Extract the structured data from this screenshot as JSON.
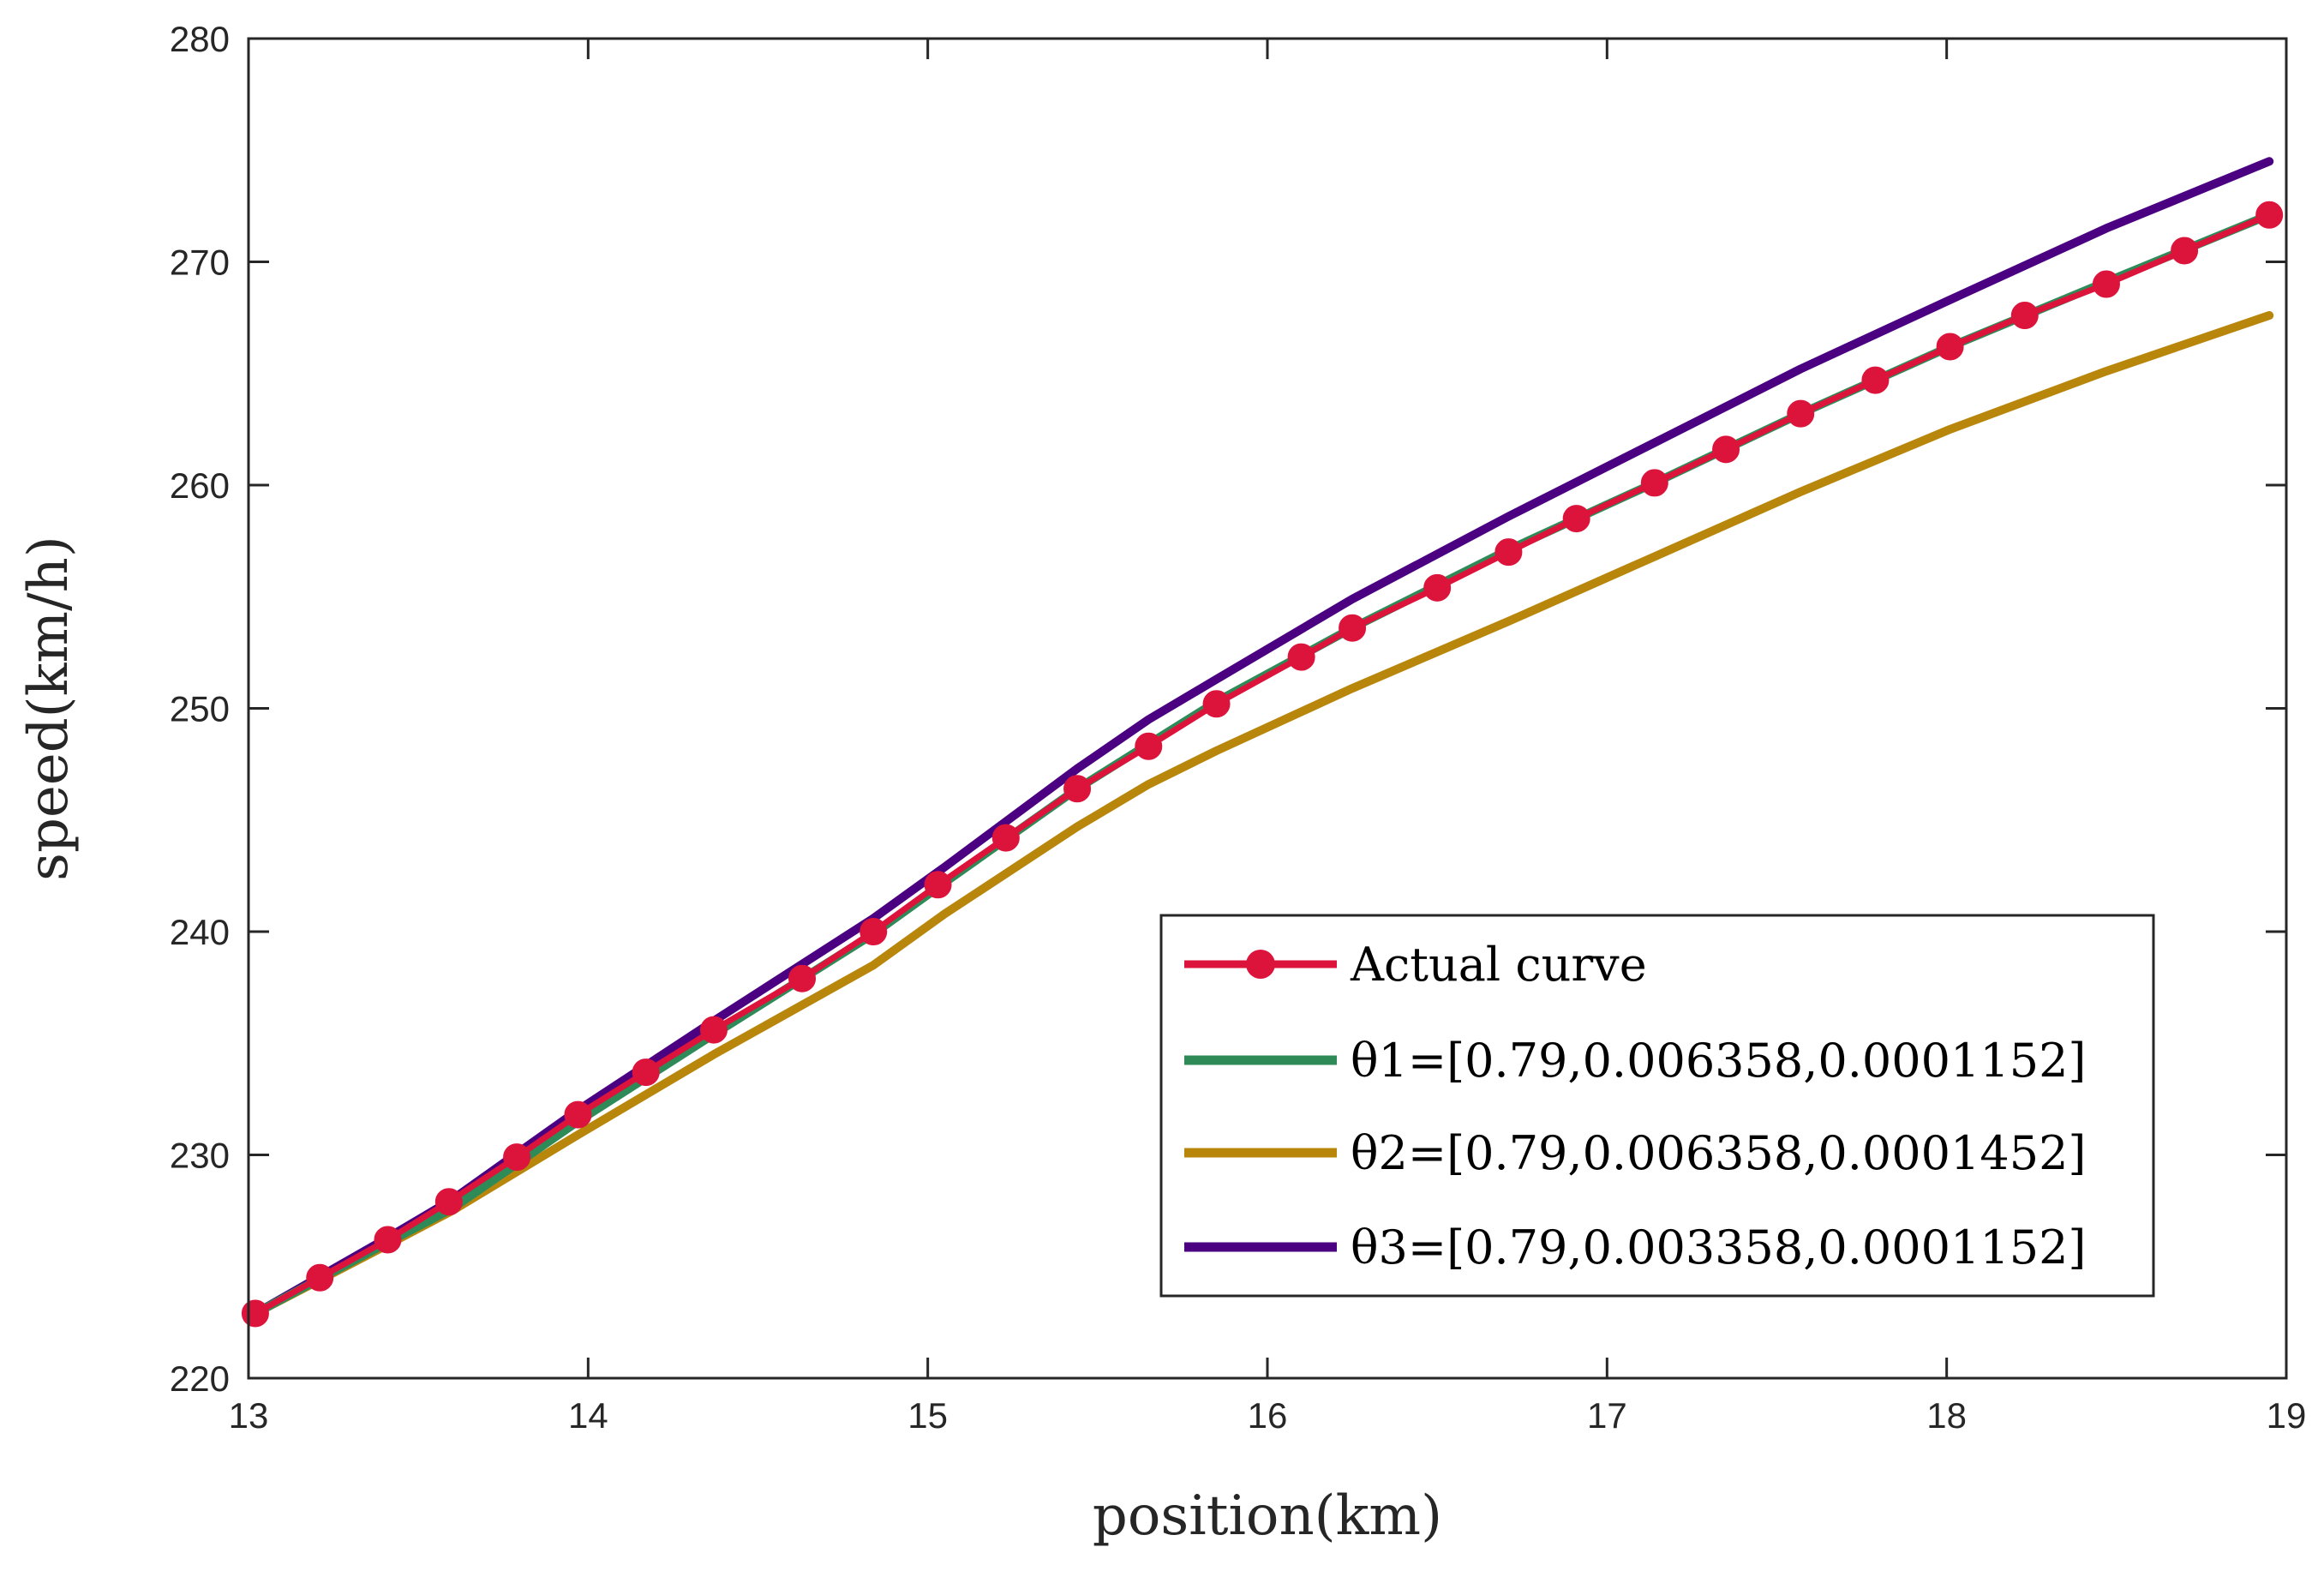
{
  "chart_data": {
    "type": "line",
    "title": "",
    "xlabel": "position(km)",
    "ylabel": "speed(km/h)",
    "xlim": [
      13,
      19
    ],
    "ylim": [
      220,
      280
    ],
    "xticks": [
      13,
      14,
      15,
      16,
      17,
      18,
      19
    ],
    "yticks": [
      220,
      230,
      240,
      250,
      260,
      270,
      280
    ],
    "grid": false,
    "legend_position": "lower-right",
    "series": [
      {
        "name": "Actual curve",
        "color": "#DC143C",
        "marker": "circle",
        "x": [
          13.02,
          13.21,
          13.41,
          13.59,
          13.79,
          13.97,
          14.17,
          14.37,
          14.63,
          14.84,
          15.03,
          15.23,
          15.44,
          15.65,
          15.85,
          16.1,
          16.25,
          16.5,
          16.71,
          16.91,
          17.14,
          17.35,
          17.57,
          17.79,
          18.01,
          18.23,
          18.47,
          18.7,
          18.95
        ],
        "y": [
          222.9,
          224.5,
          226.2,
          227.9,
          229.9,
          231.8,
          233.7,
          235.6,
          237.9,
          240.0,
          242.1,
          244.2,
          246.4,
          248.3,
          250.2,
          252.3,
          253.6,
          255.4,
          257.0,
          258.5,
          260.1,
          261.6,
          263.2,
          264.7,
          266.2,
          267.6,
          269.0,
          270.5,
          272.1
        ]
      },
      {
        "name": "θ1=[0.79,0.006358,0.0001152]",
        "color": "#2E8B57",
        "x": [
          13.02,
          13.4,
          13.6,
          13.97,
          14.37,
          14.84,
          15.05,
          15.44,
          15.65,
          15.85,
          16.25,
          16.71,
          17.14,
          17.57,
          18.01,
          18.47,
          18.95
        ],
        "y": [
          222.9,
          226.0,
          227.6,
          231.5,
          235.4,
          239.9,
          242.2,
          246.4,
          248.4,
          250.3,
          253.6,
          257.1,
          260.1,
          263.2,
          266.2,
          269.1,
          272.1
        ]
      },
      {
        "name": "θ2=[0.79,0.006358,0.0001452]",
        "color": "#B8860B",
        "x": [
          13.02,
          13.4,
          13.6,
          13.97,
          14.37,
          14.84,
          15.05,
          15.44,
          15.65,
          15.85,
          16.25,
          16.71,
          17.14,
          17.57,
          18.01,
          18.47,
          18.95
        ],
        "y": [
          222.9,
          225.9,
          227.5,
          230.9,
          234.5,
          238.5,
          240.8,
          244.7,
          246.6,
          248.1,
          250.9,
          253.9,
          256.8,
          259.7,
          262.5,
          265.1,
          267.6
        ]
      },
      {
        "name": "θ3=[0.79,0.003358,0.0001152]",
        "color": "#4B0082",
        "x": [
          13.02,
          13.4,
          13.6,
          13.97,
          14.37,
          14.84,
          15.05,
          15.44,
          15.65,
          15.85,
          16.25,
          16.71,
          17.14,
          17.57,
          18.01,
          18.47,
          18.95
        ],
        "y": [
          222.9,
          226.2,
          228.0,
          232.0,
          236.0,
          240.6,
          242.9,
          247.3,
          249.5,
          251.3,
          254.9,
          258.6,
          261.9,
          265.2,
          268.3,
          271.5,
          274.5
        ]
      }
    ]
  }
}
